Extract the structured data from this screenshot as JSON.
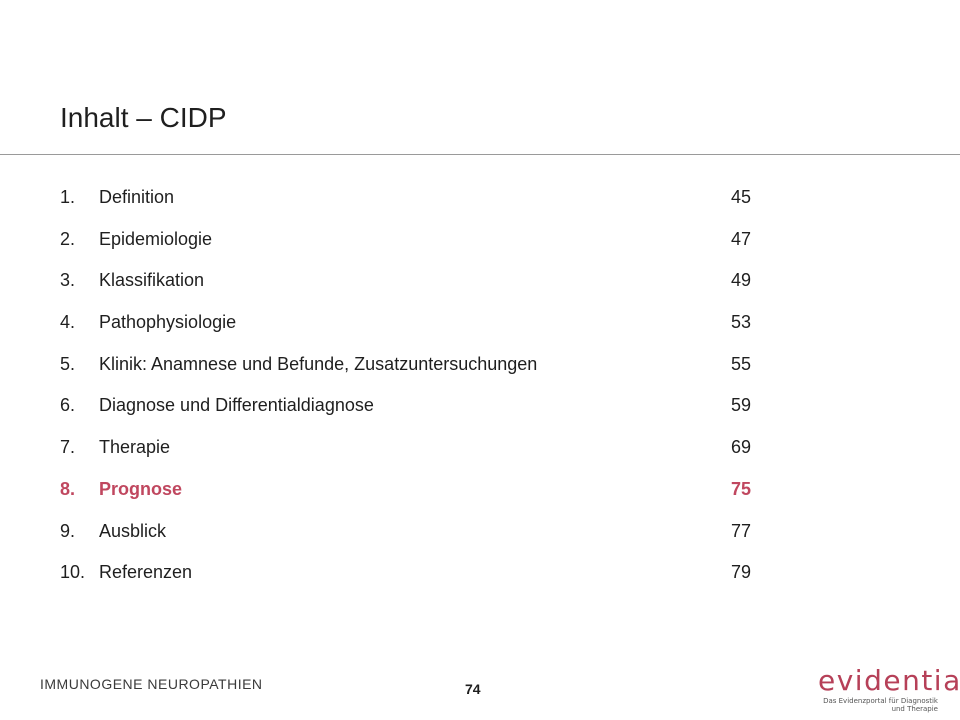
{
  "title": "Inhalt – CIDP",
  "toc": [
    {
      "num": "1.",
      "label": "Definition",
      "page": "45",
      "active": false
    },
    {
      "num": "2.",
      "label": "Epidemiologie",
      "page": "47",
      "active": false
    },
    {
      "num": "3.",
      "label": "Klassifikation",
      "page": "49",
      "active": false
    },
    {
      "num": "4.",
      "label": "Pathophysiologie",
      "page": "53",
      "active": false
    },
    {
      "num": "5.",
      "label": "Klinik: Anamnese und Befunde, Zusatzuntersuchungen",
      "page": "55",
      "active": false
    },
    {
      "num": "6.",
      "label": "Diagnose und Differentialdiagnose",
      "page": "59",
      "active": false
    },
    {
      "num": "7.",
      "label": "Therapie",
      "page": "69",
      "active": false
    },
    {
      "num": "8.",
      "label": "Prognose",
      "page": "75",
      "active": true
    },
    {
      "num": "9.",
      "label": "Ausblick",
      "page": "77",
      "active": false
    },
    {
      "num": "10.",
      "label": "Referenzen",
      "page": "79",
      "active": false
    }
  ],
  "footer": {
    "section": "IMMUNOGENE NEUROPATHIEN",
    "page_number": "74"
  },
  "logo": {
    "wordmark": "evidentia",
    "tagline_line1": "Das Evidenzportal für Diagnostik",
    "tagline_line2": "und Therapie"
  },
  "colors": {
    "accent": "#c0475f",
    "logo": "#b64058",
    "text": "#1f1f1f",
    "rule": "#9a9a9a"
  }
}
